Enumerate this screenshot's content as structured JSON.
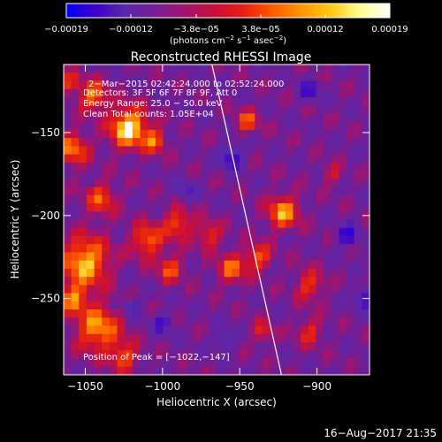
{
  "chart_data": {
    "type": "heatmap",
    "title": "Reconstructed RHESSI Image",
    "xlabel": "Heliocentric X (arcsec)",
    "ylabel": "Heliocentric Y (arcsec)",
    "xlim": [
      -1064,
      -866
    ],
    "ylim": [
      -296,
      -109
    ],
    "x_ticks": [
      {
        "value": -1050,
        "label": "−1050"
      },
      {
        "value": -1000,
        "label": "−1000"
      },
      {
        "value": -950,
        "label": "−950"
      },
      {
        "value": -900,
        "label": "−900"
      }
    ],
    "y_ticks": [
      {
        "value": -150,
        "label": "−150"
      },
      {
        "value": -200,
        "label": "−200"
      },
      {
        "value": -250,
        "label": "−250"
      }
    ],
    "colorbar": {
      "min": -0.00019,
      "max": 0.00019,
      "tick_labels": [
        "−0.00019",
        "−0.00012",
        "−3.8e−05",
        "3.8e−05",
        "0.00012",
        "0.00019"
      ],
      "units": [
        "(photons cm",
        "−2",
        " s",
        "−1",
        " asec",
        "−2",
        ")"
      ],
      "colors": [
        "#0000ff",
        "#4000c8",
        "#5a28a8",
        "#781e96",
        "#a0146e",
        "#c80f3c",
        "#e61e14",
        "#ff5a00",
        "#ff9600",
        "#ffc814",
        "#ffff96",
        "#ffffff"
      ]
    },
    "annotations": {
      "time_range": "2−Mar−2015 02:42:24.000 to 02:52:24.000",
      "detectors": "Detectors: 3F 5F 6F 7F 8F 9F, Att 0",
      "energy_range": "Energy Range: 25.0 − 50.0 keV",
      "clean_counts": "Clean    Total counts: 1.05E+04",
      "peak_position": "Position of Peak = [−1022,−147]"
    },
    "limb_line": {
      "x": [
        -968,
        -923
      ],
      "y": [
        -109,
        -296
      ]
    },
    "grid": {
      "nx": 40,
      "ny": 38,
      "hot_spots": [
        {
          "x": -1022,
          "y": -147,
          "s": 12,
          "a": 1.0
        },
        {
          "x": -1045,
          "y": -128,
          "s": 9,
          "a": 0.7
        },
        {
          "x": -1058,
          "y": -160,
          "s": 10,
          "a": 0.65
        },
        {
          "x": -1040,
          "y": -190,
          "s": 10,
          "a": 0.55
        },
        {
          "x": -1050,
          "y": -228,
          "s": 15,
          "a": 0.85
        },
        {
          "x": -1042,
          "y": -268,
          "s": 14,
          "a": 0.75
        },
        {
          "x": -1058,
          "y": -250,
          "s": 9,
          "a": 0.6
        },
        {
          "x": -1010,
          "y": -215,
          "s": 10,
          "a": 0.65
        },
        {
          "x": -990,
          "y": -205,
          "s": 9,
          "a": 0.6
        },
        {
          "x": -995,
          "y": -232,
          "s": 8,
          "a": 0.55
        },
        {
          "x": -970,
          "y": -212,
          "s": 8,
          "a": 0.5
        },
        {
          "x": -955,
          "y": -232,
          "s": 9,
          "a": 0.6
        },
        {
          "x": -938,
          "y": -225,
          "s": 8,
          "a": 0.6
        },
        {
          "x": -922,
          "y": -198,
          "s": 10,
          "a": 0.75
        },
        {
          "x": -905,
          "y": -242,
          "s": 9,
          "a": 0.5
        },
        {
          "x": -1005,
          "y": -155,
          "s": 7,
          "a": 0.6
        },
        {
          "x": -945,
          "y": -143,
          "s": 7,
          "a": 0.55
        },
        {
          "x": -890,
          "y": -175,
          "s": 6,
          "a": 0.35
        },
        {
          "x": -905,
          "y": -270,
          "s": 8,
          "a": 0.45
        },
        {
          "x": -935,
          "y": -270,
          "s": 7,
          "a": 0.4
        },
        {
          "x": -1025,
          "y": -285,
          "s": 9,
          "a": 0.55
        },
        {
          "x": -1060,
          "y": -120,
          "s": 6,
          "a": 0.5
        }
      ],
      "cold_spots": [
        {
          "x": -955,
          "y": -165,
          "s": 7,
          "a": 0.7
        },
        {
          "x": -880,
          "y": -212,
          "s": 6,
          "a": 0.8
        },
        {
          "x": -905,
          "y": -125,
          "s": 6,
          "a": 0.6
        },
        {
          "x": -1020,
          "y": -255,
          "s": 5,
          "a": 0.5
        },
        {
          "x": -1000,
          "y": -265,
          "s": 6,
          "a": 0.55
        },
        {
          "x": -960,
          "y": -275,
          "s": 6,
          "a": 0.45
        },
        {
          "x": -985,
          "y": -185,
          "s": 6,
          "a": 0.4
        },
        {
          "x": -870,
          "y": -250,
          "s": 6,
          "a": 0.6
        }
      ]
    }
  },
  "footer": {
    "timestamp": "16−Aug−2017 21:35"
  }
}
